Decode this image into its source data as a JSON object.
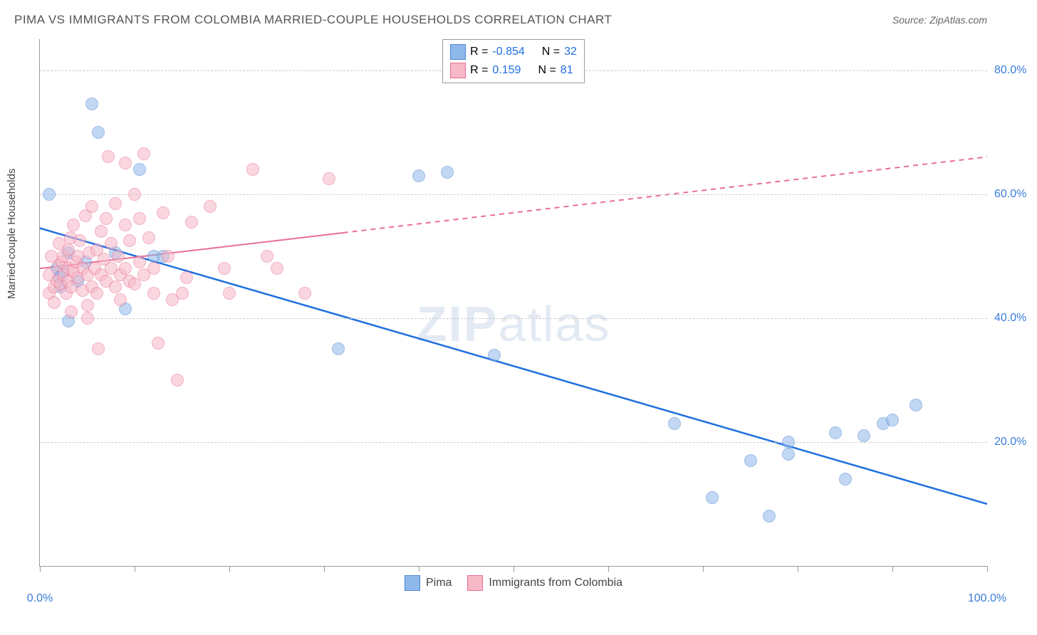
{
  "title": "PIMA VS IMMIGRANTS FROM COLOMBIA MARRIED-COUPLE HOUSEHOLDS CORRELATION CHART",
  "source": "Source: ZipAtlas.com",
  "ylabel": "Married-couple Households",
  "watermark_a": "ZIP",
  "watermark_b": "atlas",
  "chart": {
    "type": "scatter",
    "xlim": [
      0,
      100
    ],
    "ylim": [
      0,
      85
    ],
    "x_ticks": [
      0,
      10,
      20,
      30,
      40,
      50,
      60,
      70,
      80,
      90,
      100
    ],
    "x_tick_labels": {
      "0": "0.0%",
      "100": "100.0%"
    },
    "y_gridlines": [
      20,
      40,
      60,
      80
    ],
    "y_tick_labels": {
      "20": "20.0%",
      "40": "40.0%",
      "60": "60.0%",
      "80": "80.0%"
    },
    "background": "#ffffff",
    "grid_color": "#cccccc",
    "marker_radius": 8,
    "marker_opacity": 0.55,
    "series": [
      {
        "name": "Pima",
        "fill": "#8fb8ea",
        "stroke": "#4f87d4",
        "r_label": "R =",
        "r_value": "-0.854",
        "n_label": "N =",
        "n_value": "32",
        "trend": {
          "x1": 0,
          "y1": 54.5,
          "x2": 100,
          "y2": 10,
          "color": "#1f6fe0",
          "width": 2.5,
          "solid_until": 100
        },
        "points": [
          [
            1,
            60
          ],
          [
            1.8,
            48
          ],
          [
            2,
            46.5
          ],
          [
            2.2,
            45
          ],
          [
            2.5,
            47.5
          ],
          [
            3,
            50.5
          ],
          [
            3,
            39.5
          ],
          [
            4,
            46
          ],
          [
            4.8,
            49
          ],
          [
            5.5,
            74.5
          ],
          [
            6.2,
            70
          ],
          [
            8,
            50.5
          ],
          [
            9,
            41.5
          ],
          [
            10.5,
            64
          ],
          [
            12,
            50
          ],
          [
            13,
            50
          ],
          [
            31.5,
            35
          ],
          [
            40,
            63
          ],
          [
            48,
            34
          ],
          [
            67,
            23
          ],
          [
            71,
            11
          ],
          [
            75,
            17
          ],
          [
            77,
            8
          ],
          [
            79,
            20
          ],
          [
            79,
            18
          ],
          [
            84,
            21.5
          ],
          [
            85,
            14
          ],
          [
            87,
            21
          ],
          [
            89,
            23
          ],
          [
            90,
            23.5
          ],
          [
            92.5,
            26
          ],
          [
            43,
            63.5
          ]
        ]
      },
      {
        "name": "Immigrants from Colombia",
        "fill": "#f7b8c8",
        "stroke": "#e96f91",
        "r_label": "R =",
        "r_value": " 0.159",
        "n_label": "N =",
        "n_value": "81",
        "trend": {
          "x1": 0,
          "y1": 48,
          "x2": 100,
          "y2": 66,
          "color": "#e96f91",
          "width": 2,
          "solid_until": 32
        },
        "points": [
          [
            1,
            44
          ],
          [
            1,
            47
          ],
          [
            1.2,
            50
          ],
          [
            1.5,
            45
          ],
          [
            1.5,
            42.5
          ],
          [
            1.8,
            46
          ],
          [
            2,
            48.5
          ],
          [
            2,
            52
          ],
          [
            2.2,
            45.5
          ],
          [
            2.3,
            49
          ],
          [
            2.5,
            47
          ],
          [
            2.5,
            50
          ],
          [
            2.8,
            44
          ],
          [
            3,
            46
          ],
          [
            3,
            48
          ],
          [
            3,
            51
          ],
          [
            3.2,
            53
          ],
          [
            3.3,
            45
          ],
          [
            3.3,
            41
          ],
          [
            3.5,
            47.5
          ],
          [
            3.5,
            55
          ],
          [
            3.8,
            49
          ],
          [
            4,
            46.5
          ],
          [
            4,
            50
          ],
          [
            4.2,
            52.5
          ],
          [
            4.5,
            44.5
          ],
          [
            4.5,
            48
          ],
          [
            4.8,
            56.5
          ],
          [
            5,
            47
          ],
          [
            5,
            42
          ],
          [
            5,
            40
          ],
          [
            5.2,
            50.5
          ],
          [
            5.5,
            58
          ],
          [
            5.5,
            45
          ],
          [
            5.8,
            48
          ],
          [
            6,
            51
          ],
          [
            6,
            44
          ],
          [
            6.2,
            35
          ],
          [
            6.5,
            47
          ],
          [
            6.5,
            54
          ],
          [
            6.8,
            49.5
          ],
          [
            7,
            46
          ],
          [
            7,
            56
          ],
          [
            7.2,
            66
          ],
          [
            7.5,
            48
          ],
          [
            7.5,
            52
          ],
          [
            8,
            45
          ],
          [
            8,
            58.5
          ],
          [
            8.3,
            50
          ],
          [
            8.5,
            47
          ],
          [
            8.5,
            43
          ],
          [
            9,
            48
          ],
          [
            9,
            55
          ],
          [
            9,
            65
          ],
          [
            9.5,
            46
          ],
          [
            9.5,
            52.5
          ],
          [
            10,
            45.5
          ],
          [
            10,
            60
          ],
          [
            10.5,
            49
          ],
          [
            10.5,
            56
          ],
          [
            11,
            47
          ],
          [
            11,
            66.5
          ],
          [
            11.5,
            53
          ],
          [
            12,
            44
          ],
          [
            12,
            48
          ],
          [
            12.5,
            36
          ],
          [
            13,
            57
          ],
          [
            13.5,
            50
          ],
          [
            14,
            43
          ],
          [
            15,
            44
          ],
          [
            14.5,
            30
          ],
          [
            16,
            55.5
          ],
          [
            15.5,
            46.5
          ],
          [
            18,
            58
          ],
          [
            19.5,
            48
          ],
          [
            20,
            44
          ],
          [
            22.5,
            64
          ],
          [
            24,
            50
          ],
          [
            25,
            48
          ],
          [
            28,
            44
          ],
          [
            30.5,
            62.5
          ]
        ]
      }
    ]
  },
  "legend_bottom": [
    {
      "label": "Pima",
      "fill": "#8fb8ea",
      "stroke": "#4f87d4"
    },
    {
      "label": "Immigrants from Colombia",
      "fill": "#f7b8c8",
      "stroke": "#e96f91"
    }
  ]
}
